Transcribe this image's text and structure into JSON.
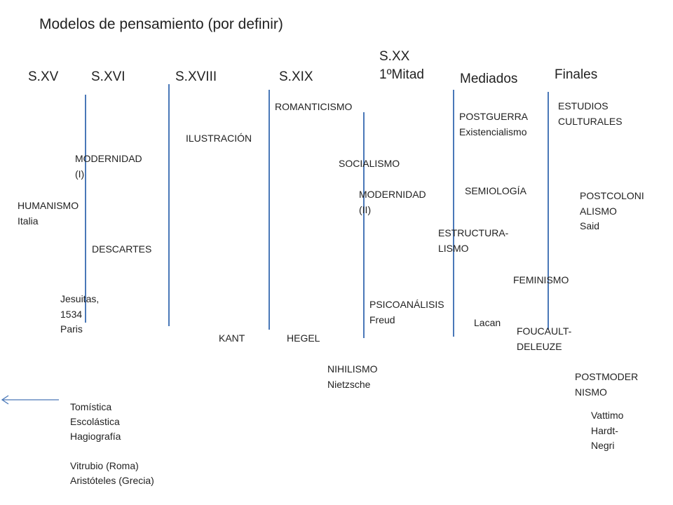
{
  "title": "Modelos de pensamiento (por definir)",
  "periods": {
    "s15": "S.XV",
    "s16": "S.XVI",
    "s18": "S.XVIII",
    "s19": "S.XIX",
    "s20_first_half": "S.XX\n1ºMitad",
    "s20_mid": "Mediados",
    "s20_late": "Finales"
  },
  "items": {
    "humanismo": "HUMANISMO\nItalia",
    "modernidad1": "MODERNIDAD\n(I)",
    "descartes": "DESCARTES",
    "jesuitas": "Jesuitas,\n1534\nParis",
    "ilustracion": "ILUSTRACIÓN",
    "kant": "KANT",
    "romanticismo": "ROMANTICISMO",
    "socialismo": "SOCIALISMO",
    "hegel": "HEGEL",
    "nihilismo": "NIHILISMO\nNietzsche",
    "modernidad2": "MODERNIDAD\n(II)",
    "psicoanalisis": "PSICOANÁLISIS\nFreud",
    "postguerra": "POSTGUERRA\nExistencialismo",
    "semiologia": "SEMIOLOGÍA",
    "estructuralismo": "ESTRUCTURA-\nLISMO",
    "lacan": "Lacan",
    "estudios_culturales": "ESTUDIOS\nCULTURALES",
    "postcolonialismo": "POSTCOLONI\nALISMO\nSaid",
    "feminismo": "FEMINISMO",
    "foucault_deleuze": "FOUCAULT-\nDELEUZE",
    "postmodernismo": "POSTMODER\nNISMO",
    "vattimo": "Vattimo\nHardt-\nNegri",
    "antecedentes": "Tomística\nEscolástica\nHagiografía\n\nVitrubio (Roma)\nAristóteles (Grecia)"
  },
  "colors": {
    "timeline": "#4a78b8",
    "text": "#222222"
  }
}
